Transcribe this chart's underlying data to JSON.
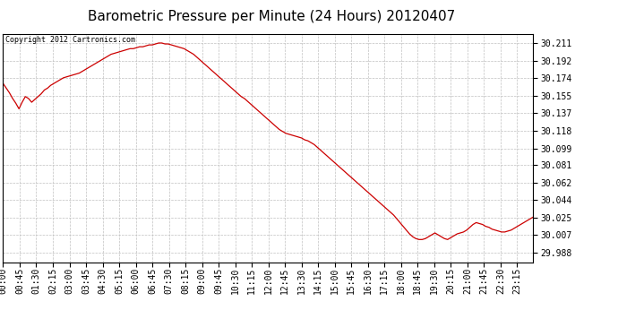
{
  "title": "Barometric Pressure per Minute (24 Hours) 20120407",
  "copyright_text": "Copyright 2012 Cartronics.com",
  "line_color": "#cc0000",
  "background_color": "#ffffff",
  "grid_color": "#c0c0c0",
  "yticks": [
    29.988,
    30.007,
    30.025,
    30.044,
    30.062,
    30.081,
    30.099,
    30.118,
    30.137,
    30.155,
    30.174,
    30.192,
    30.211
  ],
  "ylim": [
    29.978,
    30.221
  ],
  "xtick_labels": [
    "00:00",
    "00:45",
    "01:30",
    "02:15",
    "03:00",
    "03:45",
    "04:30",
    "05:15",
    "06:00",
    "06:45",
    "07:30",
    "08:15",
    "09:00",
    "09:45",
    "10:30",
    "11:15",
    "12:00",
    "12:45",
    "13:30",
    "14:15",
    "15:00",
    "15:45",
    "16:30",
    "17:15",
    "18:00",
    "18:45",
    "19:30",
    "20:15",
    "21:00",
    "21:45",
    "22:30",
    "23:15"
  ],
  "pressure_data": [
    30.168,
    30.163,
    30.158,
    30.152,
    30.147,
    30.141,
    30.148,
    30.154,
    30.152,
    30.148,
    30.151,
    30.154,
    30.157,
    30.161,
    30.163,
    30.166,
    30.168,
    30.17,
    30.172,
    30.174,
    30.175,
    30.176,
    30.177,
    30.178,
    30.179,
    30.181,
    30.183,
    30.185,
    30.187,
    30.189,
    30.191,
    30.193,
    30.195,
    30.197,
    30.199,
    30.2,
    30.201,
    30.202,
    30.203,
    30.204,
    30.205,
    30.205,
    30.206,
    30.207,
    30.207,
    30.208,
    30.209,
    30.209,
    30.21,
    30.211,
    30.211,
    30.21,
    30.21,
    30.209,
    30.208,
    30.207,
    30.206,
    30.205,
    30.203,
    30.201,
    30.199,
    30.196,
    30.193,
    30.19,
    30.187,
    30.184,
    30.181,
    30.178,
    30.175,
    30.172,
    30.169,
    30.166,
    30.163,
    30.16,
    30.157,
    30.154,
    30.152,
    30.149,
    30.146,
    30.143,
    30.14,
    30.137,
    30.134,
    30.131,
    30.128,
    30.125,
    30.122,
    30.119,
    30.117,
    30.115,
    30.114,
    30.113,
    30.112,
    30.111,
    30.11,
    30.108,
    30.107,
    30.105,
    30.103,
    30.1,
    30.097,
    30.094,
    30.091,
    30.088,
    30.085,
    30.082,
    30.079,
    30.076,
    30.073,
    30.07,
    30.067,
    30.064,
    30.061,
    30.058,
    30.055,
    30.052,
    30.049,
    30.046,
    30.043,
    30.04,
    30.037,
    30.034,
    30.031,
    30.028,
    30.024,
    30.02,
    30.016,
    30.012,
    30.008,
    30.005,
    30.003,
    30.002,
    30.002,
    30.003,
    30.005,
    30.007,
    30.009,
    30.007,
    30.005,
    30.003,
    30.002,
    30.004,
    30.006,
    30.008,
    30.009,
    30.01,
    30.012,
    30.015,
    30.018,
    30.02,
    30.019,
    30.018,
    30.016,
    30.015,
    30.013,
    30.012,
    30.011,
    30.01,
    30.01,
    30.011,
    30.012,
    30.014,
    30.016,
    30.018,
    30.02,
    30.022,
    30.024,
    30.026
  ],
  "title_fontsize": 11,
  "tick_fontsize": 7,
  "copyright_fontsize": 6
}
